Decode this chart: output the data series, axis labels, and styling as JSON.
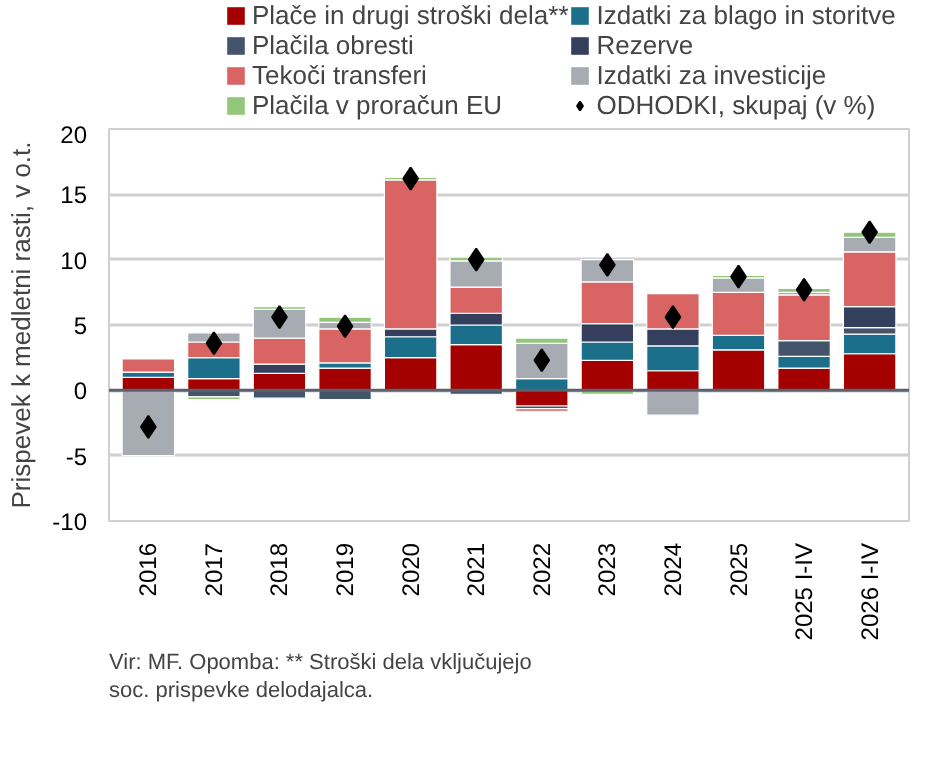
{
  "chart_data": {
    "type": "bar",
    "stacked": true,
    "ylabel": "Prispevek k medletni rasti, v o.t.",
    "categories": [
      "2016",
      "2017",
      "2018",
      "2019",
      "2020",
      "2021",
      "2022",
      "2023",
      "2024",
      "2025",
      "2025 I-IV",
      "2026 I-IV"
    ],
    "ylim": [
      -10,
      20
    ],
    "yticks": [
      -10,
      -5,
      0,
      5,
      10,
      15,
      20
    ],
    "grid": "y",
    "legend": "top",
    "series": [
      {
        "name": "Plače in drugi stroški dela**",
        "color": "#a50000",
        "values": [
          1.0,
          0.9,
          1.3,
          1.7,
          2.5,
          3.5,
          -1.2,
          2.3,
          1.5,
          3.1,
          1.7,
          2.8
        ]
      },
      {
        "name": "Izdatki za blago in storitve",
        "color": "#1b6f8a",
        "values": [
          0.4,
          1.6,
          null,
          0.4,
          1.6,
          1.5,
          0.9,
          1.4,
          1.9,
          1.1,
          0.9,
          1.5
        ]
      },
      {
        "name": "Plačila obresti",
        "color": "#44546a",
        "values": [
          null,
          -0.5,
          -0.6,
          -0.7,
          null,
          -0.3,
          -0.2,
          null,
          null,
          null,
          1.2,
          0.5
        ]
      },
      {
        "name": "Rezerve",
        "color": "#333f5c",
        "values": [
          null,
          null,
          0.7,
          null,
          0.6,
          0.9,
          null,
          1.4,
          1.3,
          null,
          null,
          1.6
        ]
      },
      {
        "name": "Tekoči transferi",
        "color": "#d96464",
        "values": [
          1.0,
          1.2,
          2.0,
          2.6,
          11.4,
          2.0,
          -0.2,
          3.2,
          2.7,
          3.3,
          3.5,
          4.2
        ]
      },
      {
        "name": "Izdatki za investicije",
        "color": "#a7acb2",
        "values": [
          -5.0,
          0.7,
          2.2,
          0.5,
          null,
          2.0,
          2.7,
          1.7,
          -1.9,
          1.1,
          0.2,
          1.1
        ]
      },
      {
        "name": "Plačila v proračun EU",
        "color": "#92c77a",
        "values": [
          null,
          -0.2,
          0.2,
          0.4,
          0.2,
          0.3,
          0.4,
          -0.3,
          null,
          0.2,
          0.3,
          0.4
        ]
      },
      {
        "name": "ODHODKI, skupaj (v %)",
        "type": "scatter",
        "marker": "diamond",
        "color": "#000000",
        "values": [
          -2.8,
          3.6,
          5.6,
          4.9,
          16.2,
          10.0,
          2.3,
          9.6,
          5.6,
          8.7,
          7.7,
          12.1
        ]
      }
    ],
    "annotations": [
      "Vir: MF. Opomba: ** Stroški dela vključujejo soc. prispevke delodajalca."
    ]
  }
}
